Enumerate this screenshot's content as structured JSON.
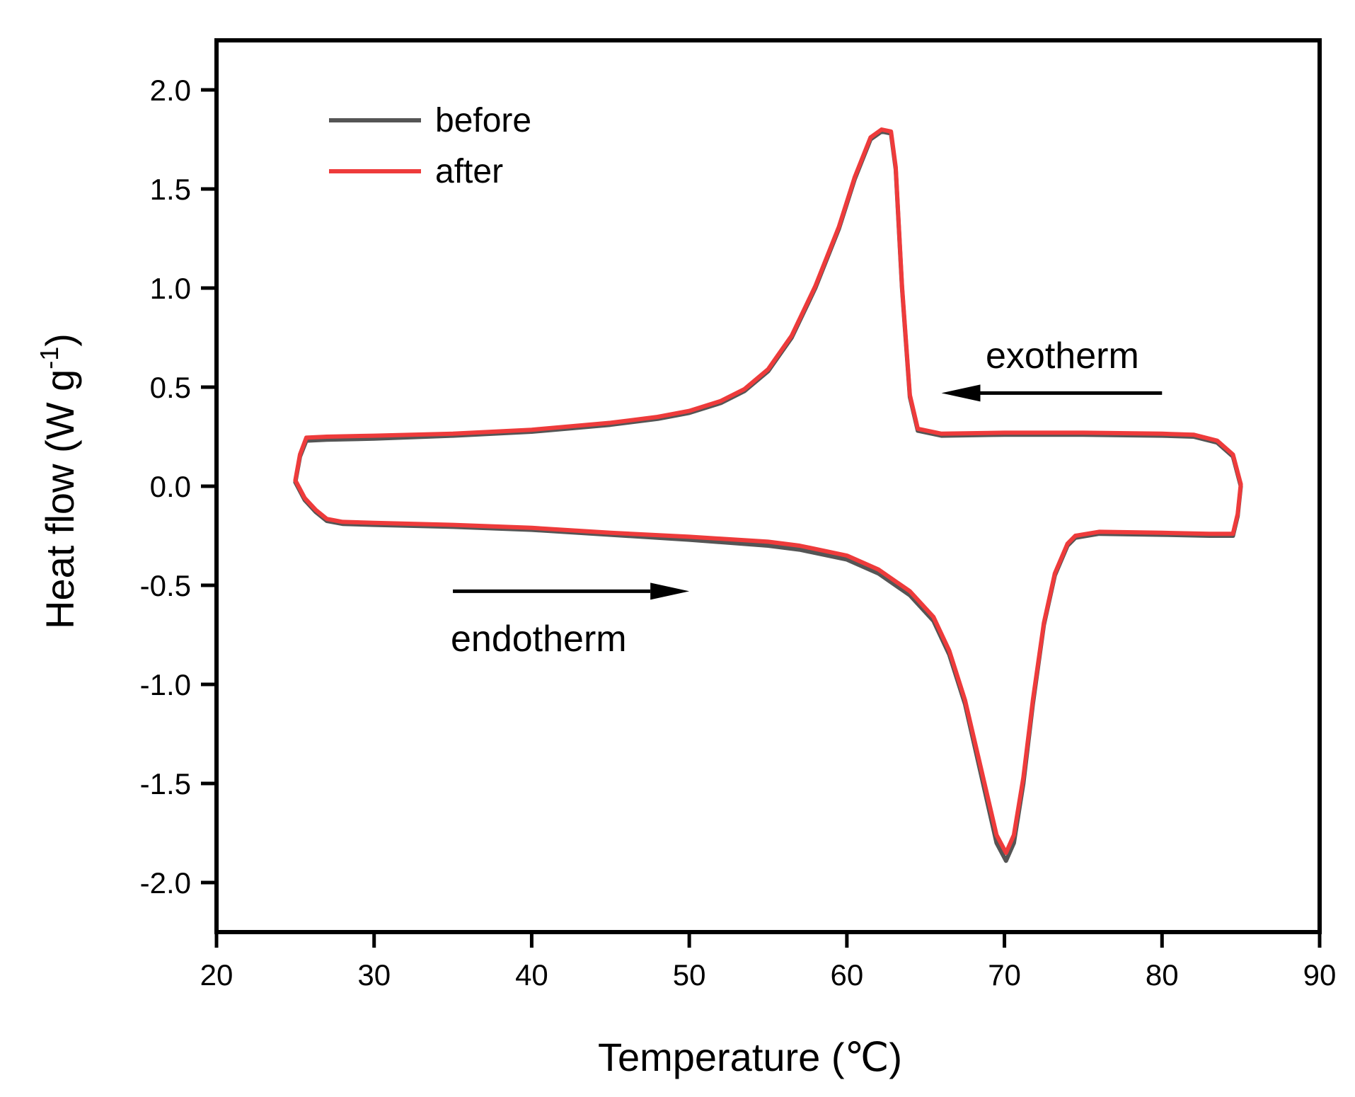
{
  "chart_data": {
    "type": "line",
    "title": "",
    "xlabel": "Temperature (℃)",
    "ylabel": "Heat flow (W g-1)",
    "ylabel_parts": {
      "main": "Heat flow (W g",
      "sup": "-1",
      "close": ")"
    },
    "xlim": [
      20,
      90
    ],
    "ylim": [
      -2.25,
      2.25
    ],
    "xticks": [
      20,
      30,
      40,
      50,
      60,
      70,
      80,
      90
    ],
    "xtick_labels": [
      "20",
      "30",
      "40",
      "50",
      "60",
      "70",
      "80",
      "90"
    ],
    "yticks": [
      2.0,
      1.5,
      1.0,
      0.5,
      0.0,
      -0.5,
      -1.0,
      -1.5,
      -2.0
    ],
    "ytick_labels": [
      "2.0",
      "1.5",
      "1.0",
      "0.5",
      "0.0",
      "-0.5",
      "-1.0",
      "-1.5",
      "-2.0"
    ],
    "grid": false,
    "legend": {
      "placement": "top-left"
    },
    "annotations": [
      {
        "text": "exotherm",
        "arrow_from": [
          80,
          0.47
        ],
        "arrow_to": [
          66,
          0.47
        ]
      },
      {
        "text": "endotherm",
        "arrow_from": [
          35,
          -0.53
        ],
        "arrow_to": [
          50,
          -0.53
        ]
      }
    ],
    "series": [
      {
        "name": "before",
        "color": "#555555",
        "points": [
          [
            25.0,
            0.02
          ],
          [
            25.3,
            0.15
          ],
          [
            25.7,
            0.23
          ],
          [
            27,
            0.235
          ],
          [
            30,
            0.24
          ],
          [
            35,
            0.255
          ],
          [
            40,
            0.275
          ],
          [
            45,
            0.31
          ],
          [
            48,
            0.34
          ],
          [
            50,
            0.37
          ],
          [
            52,
            0.42
          ],
          [
            53.5,
            0.48
          ],
          [
            55,
            0.58
          ],
          [
            56.5,
            0.75
          ],
          [
            58,
            1.0
          ],
          [
            59.5,
            1.3
          ],
          [
            60.5,
            1.55
          ],
          [
            61.5,
            1.75
          ],
          [
            62.2,
            1.79
          ],
          [
            62.8,
            1.78
          ],
          [
            63.1,
            1.6
          ],
          [
            63.5,
            1.0
          ],
          [
            64.0,
            0.45
          ],
          [
            64.5,
            0.28
          ],
          [
            66,
            0.255
          ],
          [
            70,
            0.26
          ],
          [
            75,
            0.26
          ],
          [
            80,
            0.255
          ],
          [
            82,
            0.25
          ],
          [
            83.5,
            0.22
          ],
          [
            84.5,
            0.15
          ],
          [
            85.0,
            0.0
          ],
          [
            84.8,
            -0.15
          ],
          [
            84.5,
            -0.25
          ],
          [
            83,
            -0.25
          ],
          [
            80,
            -0.245
          ],
          [
            76,
            -0.24
          ],
          [
            74.5,
            -0.26
          ],
          [
            74.0,
            -0.3
          ],
          [
            73.2,
            -0.45
          ],
          [
            72.5,
            -0.7
          ],
          [
            71.8,
            -1.1
          ],
          [
            71.2,
            -1.5
          ],
          [
            70.6,
            -1.8
          ],
          [
            70.1,
            -1.89
          ],
          [
            69.5,
            -1.8
          ],
          [
            68.5,
            -1.45
          ],
          [
            67.5,
            -1.1
          ],
          [
            66.5,
            -0.85
          ],
          [
            65.5,
            -0.68
          ],
          [
            64,
            -0.55
          ],
          [
            62,
            -0.44
          ],
          [
            60,
            -0.37
          ],
          [
            57,
            -0.32
          ],
          [
            55,
            -0.3
          ],
          [
            50,
            -0.27
          ],
          [
            45,
            -0.245
          ],
          [
            40,
            -0.22
          ],
          [
            35,
            -0.205
          ],
          [
            30,
            -0.195
          ],
          [
            28,
            -0.19
          ],
          [
            27,
            -0.175
          ],
          [
            26.3,
            -0.13
          ],
          [
            25.6,
            -0.07
          ],
          [
            25.0,
            0.02
          ]
        ]
      },
      {
        "name": "after",
        "color": "#ee3b3b",
        "points": [
          [
            25.0,
            0.03
          ],
          [
            25.3,
            0.16
          ],
          [
            25.7,
            0.245
          ],
          [
            27,
            0.25
          ],
          [
            30,
            0.255
          ],
          [
            35,
            0.265
          ],
          [
            40,
            0.285
          ],
          [
            45,
            0.32
          ],
          [
            48,
            0.35
          ],
          [
            50,
            0.38
          ],
          [
            52,
            0.43
          ],
          [
            53.5,
            0.49
          ],
          [
            55,
            0.59
          ],
          [
            56.5,
            0.76
          ],
          [
            58,
            1.01
          ],
          [
            59.5,
            1.31
          ],
          [
            60.5,
            1.56
          ],
          [
            61.5,
            1.76
          ],
          [
            62.2,
            1.8
          ],
          [
            62.8,
            1.79
          ],
          [
            63.1,
            1.61
          ],
          [
            63.5,
            1.01
          ],
          [
            64.0,
            0.46
          ],
          [
            64.5,
            0.29
          ],
          [
            66,
            0.265
          ],
          [
            70,
            0.27
          ],
          [
            75,
            0.27
          ],
          [
            80,
            0.265
          ],
          [
            82,
            0.26
          ],
          [
            83.5,
            0.23
          ],
          [
            84.5,
            0.16
          ],
          [
            85.0,
            0.01
          ],
          [
            84.8,
            -0.14
          ],
          [
            84.5,
            -0.24
          ],
          [
            83,
            -0.24
          ],
          [
            80,
            -0.235
          ],
          [
            76,
            -0.23
          ],
          [
            74.5,
            -0.25
          ],
          [
            74.0,
            -0.29
          ],
          [
            73.2,
            -0.44
          ],
          [
            72.5,
            -0.69
          ],
          [
            71.8,
            -1.08
          ],
          [
            71.2,
            -1.47
          ],
          [
            70.6,
            -1.76
          ],
          [
            70.1,
            -1.85
          ],
          [
            69.5,
            -1.76
          ],
          [
            68.5,
            -1.42
          ],
          [
            67.5,
            -1.08
          ],
          [
            66.5,
            -0.83
          ],
          [
            65.5,
            -0.66
          ],
          [
            64,
            -0.53
          ],
          [
            62,
            -0.42
          ],
          [
            60,
            -0.35
          ],
          [
            57,
            -0.3
          ],
          [
            55,
            -0.28
          ],
          [
            50,
            -0.255
          ],
          [
            45,
            -0.235
          ],
          [
            40,
            -0.21
          ],
          [
            35,
            -0.195
          ],
          [
            30,
            -0.185
          ],
          [
            28,
            -0.18
          ],
          [
            27,
            -0.165
          ],
          [
            26.3,
            -0.12
          ],
          [
            25.6,
            -0.06
          ],
          [
            25.0,
            0.03
          ]
        ]
      }
    ]
  }
}
